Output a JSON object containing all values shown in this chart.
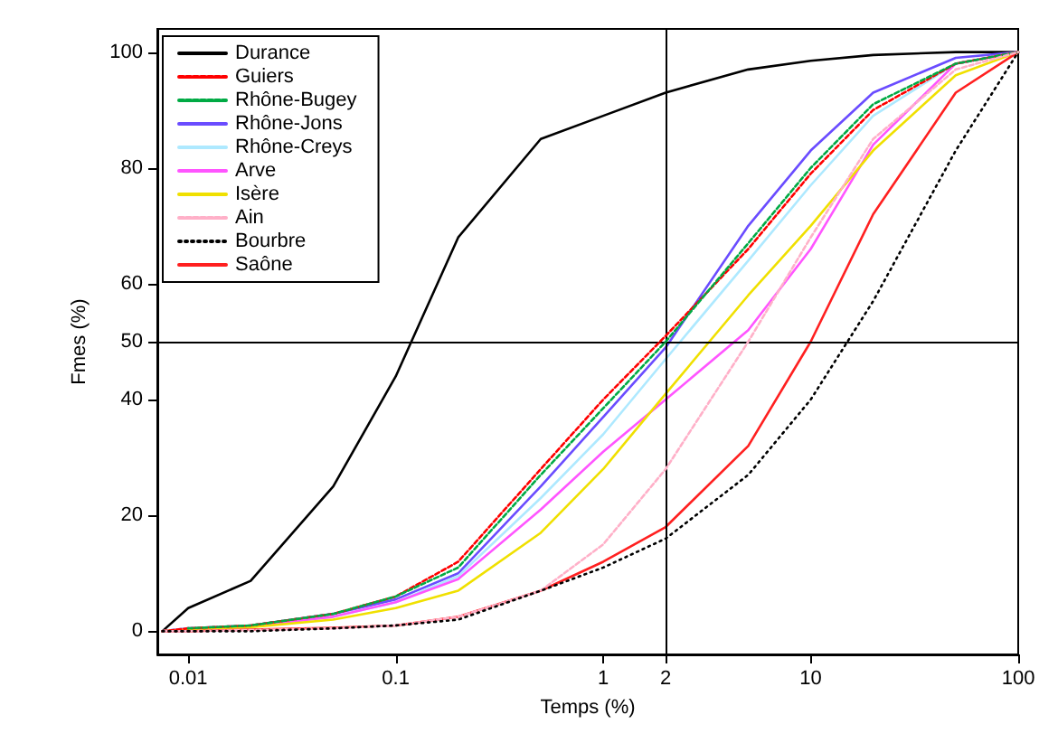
{
  "chart_data": {
    "type": "line",
    "xlabel": "Temps (%)",
    "ylabel": "Fmes (%)",
    "log": "x",
    "grid": false,
    "legend": "top left",
    "marker": "none",
    "xlim": [
      0.0071,
      100
    ],
    "xticks": [
      0.01,
      0.1,
      1,
      2,
      10,
      100
    ],
    "ylim": [
      -4,
      104
    ],
    "yticks": [
      0,
      20,
      40,
      50,
      60,
      80,
      100
    ],
    "x": [
      0.0075,
      0.01,
      0.02,
      0.05,
      0.1,
      0.2,
      0.5,
      1,
      2,
      5,
      10,
      20,
      50,
      100
    ],
    "ref_lines": [
      {
        "axis": "y",
        "value": 50,
        "color": "#000000"
      },
      {
        "axis": "x",
        "value": 2,
        "color": "#000000"
      }
    ],
    "series": [
      {
        "name": "Durance",
        "color": "#000000",
        "line_style": "solid",
        "values": [
          0,
          4,
          8.7,
          25,
          44,
          68,
          85,
          89,
          93,
          97,
          98.5,
          99.5,
          100,
          100
        ]
      },
      {
        "name": "Guiers",
        "color": "#ff0000",
        "line_style": "dashed",
        "values": [
          0,
          0.5,
          1,
          3,
          6,
          12,
          28,
          40,
          51,
          66,
          79,
          90,
          98,
          100
        ]
      },
      {
        "name": "Rhône-Bugey",
        "color": "#00aa44",
        "line_style": "dashed",
        "values": [
          null,
          0.5,
          1,
          3,
          6,
          11,
          27,
          38.5,
          50,
          67,
          80,
          91,
          98,
          100
        ]
      },
      {
        "name": "Rhône-Jons",
        "color": "#6a4cff",
        "line_style": "solid",
        "values": [
          0,
          0.5,
          1,
          3,
          5.5,
          10,
          25,
          37,
          49,
          70,
          83,
          93,
          99,
          100
        ]
      },
      {
        "name": "Rhône-Creys",
        "color": "#aee9ff",
        "line_style": "solid",
        "values": [
          0,
          0.5,
          1,
          2.5,
          5,
          9.5,
          23,
          34,
          47,
          64,
          77,
          89,
          98,
          100
        ]
      },
      {
        "name": "Arve",
        "color": "#ff55ff",
        "line_style": "solid",
        "values": [
          0,
          0.4,
          0.9,
          2.5,
          5,
          9,
          21,
          31,
          40,
          52,
          66,
          84,
          98,
          100
        ]
      },
      {
        "name": "Isère",
        "color": "#f0e000",
        "line_style": "solid",
        "values": [
          0,
          0.3,
          0.7,
          2,
          4,
          7,
          17,
          28,
          41,
          58,
          70,
          83,
          96,
          100
        ]
      },
      {
        "name": "Ain",
        "color": "#ffb0c8",
        "line_style": "dashed",
        "values": [
          0,
          0,
          0.2,
          0.5,
          1,
          2.5,
          7,
          15,
          28,
          50,
          68,
          85,
          97,
          100
        ]
      },
      {
        "name": "Bourbre",
        "color": "#000000",
        "line_style": "dotted",
        "values": [
          0,
          0,
          0,
          0.5,
          1,
          2,
          7,
          11,
          16,
          27,
          40,
          57,
          83,
          100
        ]
      },
      {
        "name": "Saône",
        "color": "#ff2020",
        "line_style": "solid",
        "values": [
          0,
          0,
          0.3,
          0.6,
          1,
          2.5,
          7,
          12,
          18,
          32,
          50,
          72,
          93,
          100
        ]
      }
    ]
  }
}
